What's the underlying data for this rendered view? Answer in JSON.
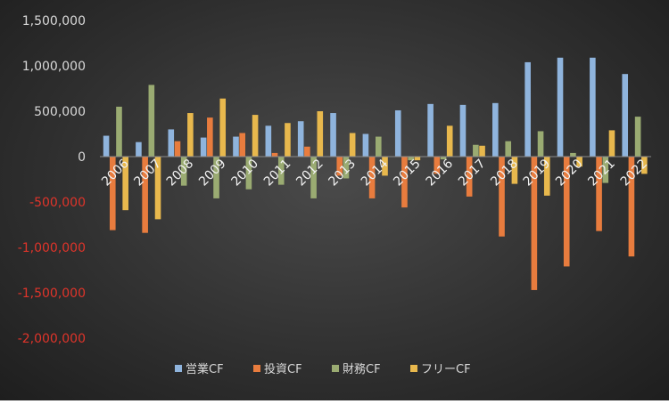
{
  "chart_data": {
    "type": "bar",
    "categories": [
      "2006",
      "2007",
      "2008",
      "2009",
      "2010",
      "2011",
      "2012",
      "2013",
      "2014",
      "2015",
      "2016",
      "2017",
      "2018",
      "2019",
      "2020",
      "2021",
      "2022"
    ],
    "ylim": [
      -2000000,
      1500000
    ],
    "yticks": [
      1500000,
      1000000,
      500000,
      0,
      -500000,
      -1000000,
      -1500000,
      -2000000
    ],
    "ytick_labels": [
      "1,500,000",
      "1,000,000",
      "500,000",
      "0",
      "-500,000",
      "-1,000,000",
      "-1,500,000",
      "-2,000,000"
    ],
    "legend_position": "bottom",
    "grid": false,
    "series": [
      {
        "name": "営業CF",
        "color": "#8fb4dd",
        "values": [
          230000,
          160000,
          300000,
          210000,
          220000,
          340000,
          390000,
          480000,
          250000,
          510000,
          580000,
          570000,
          590000,
          1040000,
          1090000,
          1090000,
          910000
        ]
      },
      {
        "name": "投資CF",
        "color": "#e87c3e",
        "values": [
          -810000,
          -840000,
          170000,
          430000,
          260000,
          40000,
          110000,
          -210000,
          -460000,
          -560000,
          -190000,
          -440000,
          -880000,
          -1470000,
          -1210000,
          -820000,
          -1100000
        ]
      },
      {
        "name": "財務CF",
        "color": "#9aab72",
        "values": [
          550000,
          790000,
          -320000,
          -460000,
          -360000,
          -310000,
          -460000,
          -240000,
          220000,
          -40000,
          -30000,
          130000,
          170000,
          280000,
          40000,
          -290000,
          440000
        ]
      },
      {
        "name": "フリーCF",
        "color": "#e8b84d",
        "values": [
          -590000,
          -690000,
          480000,
          640000,
          460000,
          370000,
          500000,
          260000,
          -210000,
          -40000,
          340000,
          120000,
          -300000,
          -430000,
          -110000,
          290000,
          -190000
        ]
      }
    ]
  }
}
